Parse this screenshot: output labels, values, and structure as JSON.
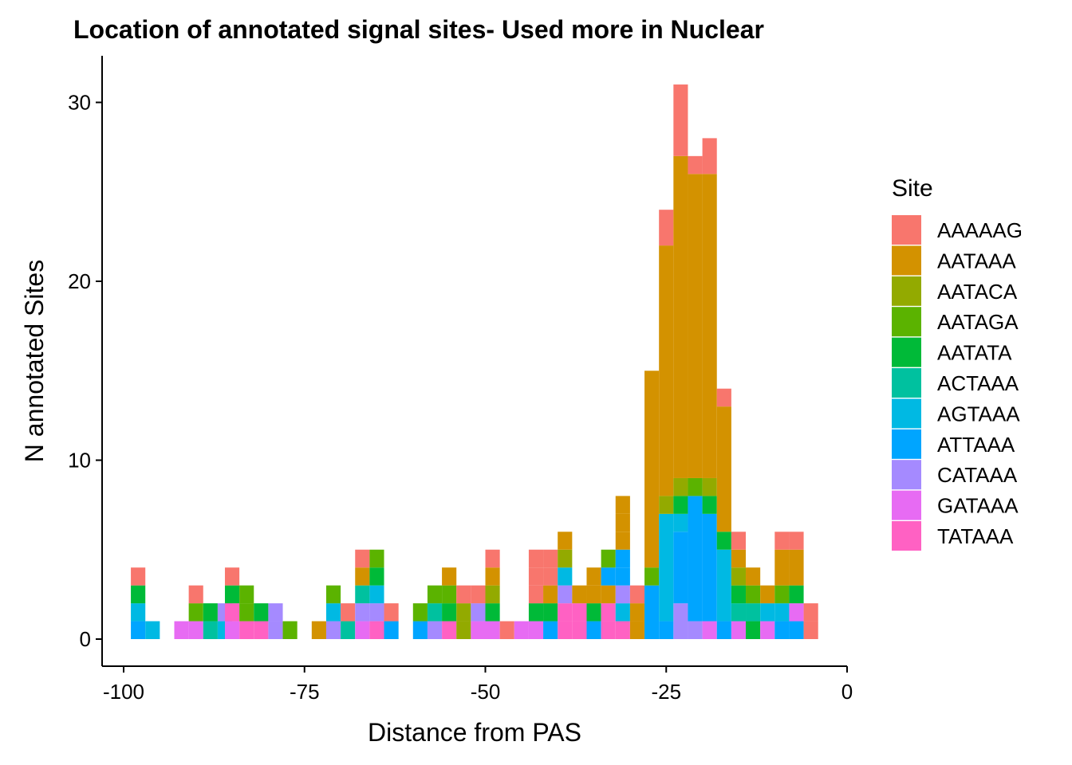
{
  "chart_data": {
    "type": "bar",
    "stacked": true,
    "title": "Location of annotated signal sites- Used more in Nuclear",
    "xlabel": "Distance from PAS",
    "ylabel": "N annotated Sites",
    "xlim": [
      -100,
      0
    ],
    "ylim": [
      0,
      32
    ],
    "bin_width": 2,
    "x_ticks": [
      -100,
      -75,
      -50,
      -25,
      0
    ],
    "x_tick_labels": [
      "-100",
      "-75",
      "-50",
      "-25",
      "0"
    ],
    "y_ticks": [
      0,
      10,
      20,
      30
    ],
    "y_tick_labels": [
      "0",
      "10",
      "20",
      "30"
    ],
    "grid": false,
    "legend": {
      "title": "Site",
      "position": "right",
      "entries": [
        "AAAAAG",
        "AATAAA",
        "AATACA",
        "AATAGA",
        "AATATA",
        "ACTAAA",
        "AGTAAA",
        "ATTAAA",
        "CATAAA",
        "GATAAA",
        "TATAAA"
      ]
    },
    "series_colors": {
      "AAAAAG": "#F8766D",
      "AATAAA": "#D39200",
      "AATACA": "#93AA00",
      "AATAGA": "#5BB300",
      "AATATA": "#00BA38",
      "ACTAAA": "#00C19F",
      "AGTAAA": "#00B9E3",
      "ATTAAA": "#00A5FF",
      "CATAAA": "#A58AFF",
      "GATAAA": "#E76BF3",
      "TATAAA": "#FF61C3"
    },
    "bars": [
      {
        "x": -98,
        "stack": [
          [
            "ATTAAA",
            1
          ],
          [
            "AGTAAA",
            1
          ],
          [
            "AATATA",
            1
          ],
          [
            "AAAAAG",
            1
          ]
        ]
      },
      {
        "x": -96,
        "stack": [
          [
            "AGTAAA",
            1
          ]
        ]
      },
      {
        "x": -92,
        "stack": [
          [
            "GATAAA",
            1
          ]
        ]
      },
      {
        "x": -90,
        "stack": [
          [
            "GATAAA",
            1
          ],
          [
            "AATAGA",
            1
          ],
          [
            "AAAAAG",
            1
          ]
        ]
      },
      {
        "x": -88,
        "stack": [
          [
            "ACTAAA",
            1
          ],
          [
            "AATATA",
            1
          ]
        ]
      },
      {
        "x": -86,
        "stack": [
          [
            "AGTAAA",
            1
          ],
          [
            "CATAAA",
            1
          ]
        ]
      },
      {
        "x": -85,
        "stack": [
          [
            "GATAAA",
            1
          ],
          [
            "TATAAA",
            1
          ],
          [
            "AATATA",
            1
          ],
          [
            "AAAAAG",
            1
          ]
        ]
      },
      {
        "x": -83,
        "stack": [
          [
            "TATAAA",
            1
          ],
          [
            "AATAGA",
            1
          ],
          [
            "AATAGA",
            1
          ]
        ]
      },
      {
        "x": -81,
        "stack": [
          [
            "TATAAA",
            1
          ],
          [
            "AATATA",
            1
          ]
        ]
      },
      {
        "x": -79,
        "stack": [
          [
            "CATAAA",
            1
          ],
          [
            "CATAAA",
            1
          ]
        ]
      },
      {
        "x": -77,
        "stack": [
          [
            "AATAGA",
            1
          ]
        ]
      },
      {
        "x": -73,
        "stack": [
          [
            "AATAAA",
            1
          ]
        ]
      },
      {
        "x": -71,
        "stack": [
          [
            "CATAAA",
            1
          ],
          [
            "AGTAAA",
            1
          ],
          [
            "AATAGA",
            1
          ]
        ]
      },
      {
        "x": -69,
        "stack": [
          [
            "ACTAAA",
            1
          ],
          [
            "AAAAAG",
            1
          ]
        ]
      },
      {
        "x": -67,
        "stack": [
          [
            "GATAAA",
            1
          ],
          [
            "CATAAA",
            1
          ],
          [
            "ACTAAA",
            1
          ],
          [
            "AATAAA",
            1
          ],
          [
            "AAAAAG",
            1
          ]
        ]
      },
      {
        "x": -65,
        "stack": [
          [
            "TATAAA",
            1
          ],
          [
            "CATAAA",
            1
          ],
          [
            "AGTAAA",
            1
          ],
          [
            "AATATA",
            1
          ],
          [
            "AATAGA",
            1
          ]
        ]
      },
      {
        "x": -63,
        "stack": [
          [
            "ATTAAA",
            1
          ],
          [
            "AAAAAG",
            1
          ]
        ]
      },
      {
        "x": -59,
        "stack": [
          [
            "ATTAAA",
            1
          ],
          [
            "AATAGA",
            1
          ]
        ]
      },
      {
        "x": -57,
        "stack": [
          [
            "CATAAA",
            1
          ],
          [
            "ACTAAA",
            1
          ],
          [
            "AATAGA",
            1
          ]
        ]
      },
      {
        "x": -55,
        "stack": [
          [
            "TATAAA",
            1
          ],
          [
            "AATATA",
            1
          ],
          [
            "AATAGA",
            1
          ],
          [
            "AATAAA",
            1
          ]
        ]
      },
      {
        "x": -53,
        "stack": [
          [
            "AATACA",
            1
          ],
          [
            "AATACA",
            1
          ],
          [
            "AAAAAG",
            1
          ]
        ]
      },
      {
        "x": -51,
        "stack": [
          [
            "GATAAA",
            1
          ],
          [
            "CATAAA",
            1
          ],
          [
            "AAAAAG",
            1
          ]
        ]
      },
      {
        "x": -49,
        "stack": [
          [
            "GATAAA",
            1
          ],
          [
            "AATATA",
            1
          ],
          [
            "AATACA",
            1
          ],
          [
            "AATAAA",
            1
          ],
          [
            "AAAAAG",
            1
          ]
        ]
      },
      {
        "x": -47,
        "stack": [
          [
            "AAAAAG",
            1
          ]
        ]
      },
      {
        "x": -45,
        "stack": [
          [
            "GATAAA",
            1
          ]
        ]
      },
      {
        "x": -43,
        "stack": [
          [
            "GATAAA",
            1
          ],
          [
            "AATATA",
            1
          ],
          [
            "AAAAAG",
            1
          ],
          [
            "AAAAAG",
            1
          ],
          [
            "AAAAAG",
            1
          ]
        ]
      },
      {
        "x": -41,
        "stack": [
          [
            "ATTAAA",
            1
          ],
          [
            "AATATA",
            1
          ],
          [
            "AATAAA",
            1
          ],
          [
            "AAAAAG",
            1
          ],
          [
            "AAAAAG",
            1
          ]
        ]
      },
      {
        "x": -39,
        "stack": [
          [
            "TATAAA",
            1
          ],
          [
            "TATAAA",
            1
          ],
          [
            "CATAAA",
            1
          ],
          [
            "AGTAAA",
            1
          ],
          [
            "AATACA",
            1
          ],
          [
            "AATAAA",
            1
          ]
        ]
      },
      {
        "x": -37,
        "stack": [
          [
            "TATAAA",
            1
          ],
          [
            "TATAAA",
            1
          ],
          [
            "AATAAA",
            1
          ]
        ]
      },
      {
        "x": -35,
        "stack": [
          [
            "ATTAAA",
            1
          ],
          [
            "AATATA",
            1
          ],
          [
            "AATAAA",
            1
          ],
          [
            "AATAAA",
            1
          ]
        ]
      },
      {
        "x": -33,
        "stack": [
          [
            "TATAAA",
            1
          ],
          [
            "TATAAA",
            1
          ],
          [
            "AATAAA",
            1
          ],
          [
            "ATTAAA",
            1
          ],
          [
            "AATAGA",
            1
          ]
        ]
      },
      {
        "x": -31,
        "stack": [
          [
            "TATAAA",
            1
          ],
          [
            "AGTAAA",
            1
          ],
          [
            "CATAAA",
            1
          ],
          [
            "ATTAAA",
            1
          ],
          [
            "ATTAAA",
            1
          ],
          [
            "AATAAA",
            1
          ],
          [
            "AATAAA",
            1
          ],
          [
            "AATAAA",
            1
          ]
        ]
      },
      {
        "x": -29,
        "stack": [
          [
            "AATAAA",
            1
          ],
          [
            "AATAAA",
            1
          ],
          [
            "AAAAAG",
            1
          ]
        ]
      },
      {
        "x": -27,
        "stack": [
          [
            "ATTAAA",
            3
          ],
          [
            "AATAGA",
            1
          ],
          [
            "AATAAA",
            11
          ]
        ]
      },
      {
        "x": -25,
        "stack": [
          [
            "ATTAAA",
            1
          ],
          [
            "AGTAAA",
            6
          ],
          [
            "AATACA",
            1
          ],
          [
            "AATAAA",
            14
          ],
          [
            "AAAAAG",
            2
          ]
        ]
      },
      {
        "x": -23,
        "stack": [
          [
            "CATAAA",
            2
          ],
          [
            "ATTAAA",
            4
          ],
          [
            "AGTAAA",
            1
          ],
          [
            "AATATA",
            1
          ],
          [
            "AATACA",
            1
          ],
          [
            "AATAAA",
            18
          ],
          [
            "AAAAAG",
            4
          ]
        ]
      },
      {
        "x": -21,
        "stack": [
          [
            "CATAAA",
            1
          ],
          [
            "ATTAAA",
            7
          ],
          [
            "AATAGA",
            1
          ],
          [
            "AATAAA",
            17
          ],
          [
            "AAAAAG",
            1
          ]
        ]
      },
      {
        "x": -19,
        "stack": [
          [
            "GATAAA",
            1
          ],
          [
            "ATTAAA",
            6
          ],
          [
            "AATATA",
            1
          ],
          [
            "AATACA",
            1
          ],
          [
            "AATAAA",
            17
          ],
          [
            "AAAAAG",
            2
          ]
        ]
      },
      {
        "x": -17,
        "stack": [
          [
            "ATTAAA",
            1
          ],
          [
            "AGTAAA",
            4
          ],
          [
            "AATATA",
            1
          ],
          [
            "AATAAA",
            7
          ],
          [
            "AAAAAG",
            1
          ]
        ]
      },
      {
        "x": -15,
        "stack": [
          [
            "GATAAA",
            1
          ],
          [
            "ACTAAA",
            1
          ],
          [
            "AATATA",
            1
          ],
          [
            "AATACA",
            1
          ],
          [
            "AATAAA",
            1
          ],
          [
            "AAAAAG",
            1
          ]
        ]
      },
      {
        "x": -13,
        "stack": [
          [
            "AATATA",
            1
          ],
          [
            "ACTAAA",
            1
          ],
          [
            "AATAGA",
            1
          ],
          [
            "AATAAA",
            1
          ]
        ]
      },
      {
        "x": -11,
        "stack": [
          [
            "GATAAA",
            1
          ],
          [
            "AGTAAA",
            1
          ],
          [
            "AATAAA",
            1
          ]
        ]
      },
      {
        "x": -9,
        "stack": [
          [
            "ATTAAA",
            1
          ],
          [
            "AGTAAA",
            1
          ],
          [
            "AATAGA",
            1
          ],
          [
            "AATAAA",
            2
          ],
          [
            "AAAAAG",
            1
          ]
        ]
      },
      {
        "x": -7,
        "stack": [
          [
            "ATTAAA",
            1
          ],
          [
            "GATAAA",
            1
          ],
          [
            "AATATA",
            1
          ],
          [
            "AATAAA",
            2
          ],
          [
            "AAAAAG",
            1
          ]
        ]
      },
      {
        "x": -5,
        "stack": [
          [
            "AAAAAG",
            1
          ],
          [
            "AAAAAG",
            1
          ]
        ]
      }
    ]
  }
}
